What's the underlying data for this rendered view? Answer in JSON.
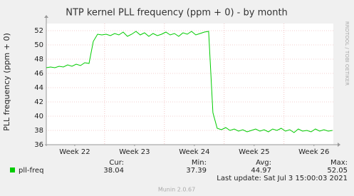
{
  "chart_data": {
    "type": "line",
    "title": "NTP kernel PLL frequency (ppm + 0) - by month",
    "ylabel": "PLL frequency (ppm + 0)",
    "watermark": "RRDTOOL / TOBI OETIKER",
    "xlim": [
      0,
      33.6
    ],
    "xticks": [
      {
        "value": 3.33,
        "label": "Week 22"
      },
      {
        "value": 10.33,
        "label": "Week 23"
      },
      {
        "value": 17.33,
        "label": "Week 24"
      },
      {
        "value": 24.33,
        "label": "Week 25"
      },
      {
        "value": 31.33,
        "label": "Week 26"
      }
    ],
    "xgrid": [
      6.83,
      13.83,
      20.83,
      27.83
    ],
    "ylim": [
      36,
      53
    ],
    "yticks": [
      36,
      38,
      40,
      42,
      44,
      46,
      48,
      50,
      52
    ],
    "grid": true,
    "x": [
      0,
      0.5,
      1,
      1.5,
      2,
      2.5,
      3,
      3.5,
      4,
      4.5,
      5,
      5.5,
      6,
      6.5,
      7,
      7.5,
      8,
      8.5,
      9,
      9.5,
      10,
      10.5,
      11,
      11.5,
      12,
      12.5,
      13,
      13.5,
      14,
      14.5,
      15,
      15.5,
      16,
      16.5,
      17,
      17.5,
      18,
      18.5,
      19,
      19.5,
      20,
      20.5,
      21,
      21.5,
      22,
      22.5,
      23,
      23.5,
      24,
      24.5,
      25,
      25.5,
      26,
      26.5,
      27,
      27.5,
      28,
      28.5,
      29,
      29.5,
      30,
      30.5,
      31,
      31.5,
      32,
      32.5,
      33,
      33.5
    ],
    "series": [
      {
        "name": "pll-freq",
        "color": "#00cc00",
        "values": [
          46.8,
          46.9,
          46.8,
          47.0,
          46.9,
          47.2,
          47.0,
          47.3,
          47.1,
          47.5,
          47.4,
          50.5,
          51.5,
          51.4,
          51.5,
          51.3,
          51.6,
          51.4,
          51.8,
          51.2,
          51.5,
          51.9,
          51.4,
          51.7,
          51.2,
          51.6,
          51.3,
          51.5,
          51.8,
          51.4,
          51.6,
          51.2,
          51.7,
          51.5,
          51.9,
          51.4,
          51.6,
          51.8,
          51.9,
          40.5,
          38.3,
          38.1,
          38.4,
          38.0,
          38.2,
          37.9,
          38.1,
          37.8,
          38.0,
          38.2,
          37.9,
          38.1,
          37.8,
          38.2,
          38.0,
          38.3,
          37.9,
          38.1,
          37.7,
          38.2,
          37.9,
          38.0,
          37.8,
          38.2,
          37.9,
          38.1,
          37.9,
          38.0
        ],
        "stats": {
          "cur": 38.04,
          "min": 37.39,
          "avg": 44.97,
          "max": 52.05
        }
      }
    ],
    "legend_headers": {
      "cur": "Cur:",
      "min": "Min:",
      "avg": "Avg:",
      "max": "Max:"
    },
    "last_update": "Last update: Sat Jul  3 15:00:03 2021",
    "footer": "Munin 2.0.67"
  }
}
